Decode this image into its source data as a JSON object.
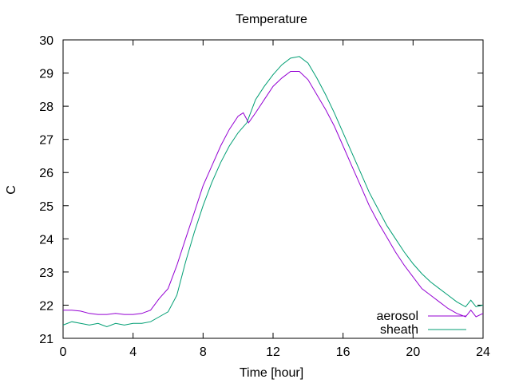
{
  "chart_data": {
    "type": "line",
    "title": "Temperature",
    "xlabel": "Time [hour]",
    "ylabel": "C",
    "xlim": [
      0,
      24
    ],
    "ylim": [
      21,
      30
    ],
    "xticks": [
      0,
      4,
      8,
      12,
      16,
      20,
      24
    ],
    "yticks": [
      21,
      22,
      23,
      24,
      25,
      26,
      27,
      28,
      29,
      30
    ],
    "grid": false,
    "legend_position": "bottom-right",
    "series": [
      {
        "name": "aerosol",
        "color": "#9400d3",
        "x": [
          0,
          0.5,
          1,
          1.5,
          2,
          2.5,
          3,
          3.5,
          4,
          4.5,
          5,
          5.5,
          6,
          6.5,
          7,
          7.5,
          8,
          8.5,
          9,
          9.5,
          10,
          10.3,
          10.6,
          11,
          11.5,
          12,
          12.5,
          13,
          13.5,
          14,
          14.5,
          15,
          15.5,
          16,
          16.5,
          17,
          17.5,
          18,
          18.5,
          19,
          19.5,
          20,
          20.5,
          21,
          21.5,
          22,
          22.5,
          23,
          23.3,
          23.6,
          24
        ],
        "y": [
          21.85,
          21.85,
          21.82,
          21.75,
          21.72,
          21.72,
          21.75,
          21.72,
          21.72,
          21.75,
          21.85,
          22.2,
          22.5,
          23.2,
          24.0,
          24.8,
          25.6,
          26.2,
          26.8,
          27.3,
          27.7,
          27.8,
          27.5,
          27.8,
          28.2,
          28.6,
          28.85,
          29.05,
          29.05,
          28.8,
          28.35,
          27.9,
          27.4,
          26.8,
          26.2,
          25.6,
          25.0,
          24.5,
          24.05,
          23.6,
          23.2,
          22.85,
          22.5,
          22.3,
          22.1,
          21.9,
          21.75,
          21.65,
          21.85,
          21.65,
          21.75
        ]
      },
      {
        "name": "sheath",
        "color": "#009e73",
        "x": [
          0,
          0.5,
          1,
          1.5,
          2,
          2.5,
          3,
          3.5,
          4,
          4.5,
          5,
          5.5,
          6,
          6.5,
          7,
          7.5,
          8,
          8.5,
          9,
          9.5,
          10,
          10.5,
          11,
          11.5,
          12,
          12.5,
          13,
          13.5,
          14,
          14.5,
          15,
          15.5,
          16,
          16.5,
          17,
          17.5,
          18,
          18.5,
          19,
          19.5,
          20,
          20.5,
          21,
          21.5,
          22,
          22.5,
          23,
          23.3,
          23.6,
          24
        ],
        "y": [
          21.4,
          21.5,
          21.45,
          21.4,
          21.45,
          21.35,
          21.45,
          21.4,
          21.45,
          21.45,
          21.5,
          21.65,
          21.8,
          22.3,
          23.3,
          24.2,
          25.0,
          25.7,
          26.3,
          26.8,
          27.2,
          27.5,
          28.2,
          28.6,
          28.95,
          29.25,
          29.45,
          29.5,
          29.3,
          28.85,
          28.35,
          27.8,
          27.2,
          26.6,
          26.0,
          25.4,
          24.9,
          24.4,
          24.0,
          23.6,
          23.25,
          22.95,
          22.7,
          22.5,
          22.3,
          22.1,
          21.95,
          22.15,
          21.95,
          22.0
        ]
      }
    ]
  }
}
